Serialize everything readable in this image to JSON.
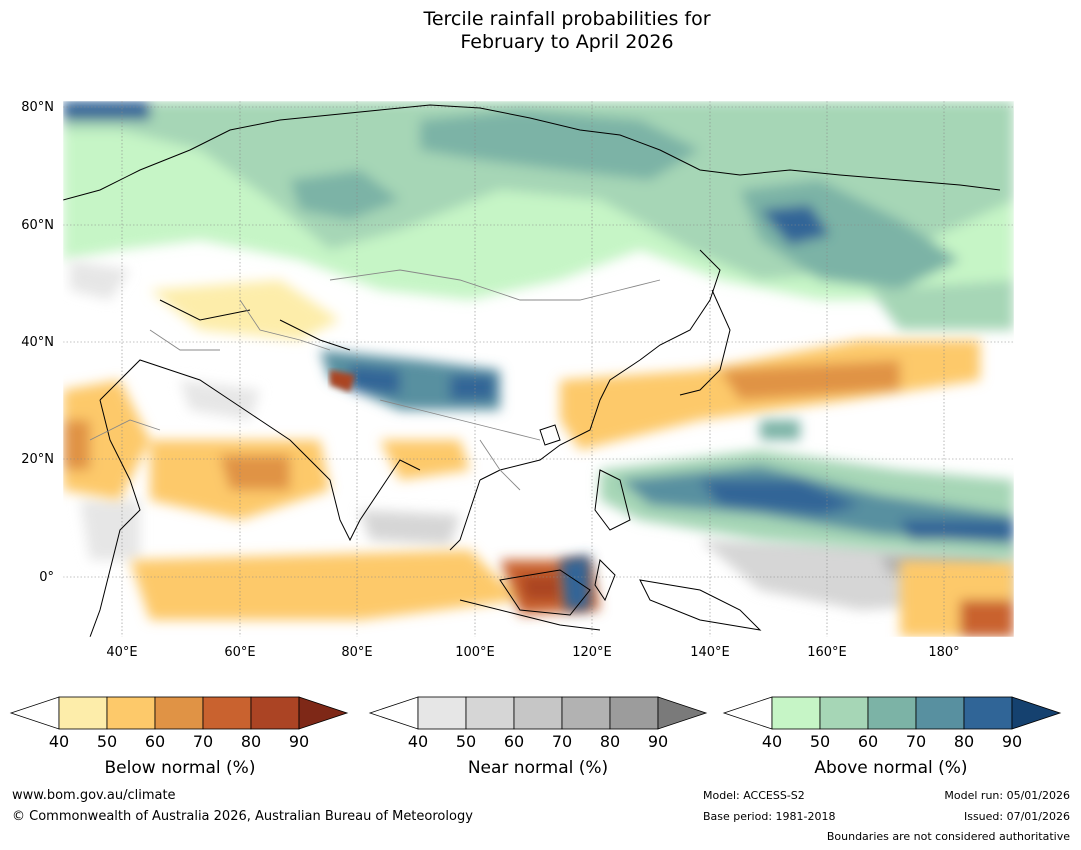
{
  "title": {
    "line1": "Tercile rainfall probabilities for",
    "line2": "February to April 2026"
  },
  "map": {
    "lat_labels": [
      "80°N",
      "60°N",
      "40°N",
      "20°N",
      "0°"
    ],
    "lon_labels": [
      "40°E",
      "60°E",
      "80°E",
      "100°E",
      "120°E",
      "140°E",
      "160°E",
      "180°"
    ],
    "region": {
      "lon_min": 30,
      "lon_max": 192,
      "lat_min": -10,
      "lat_max": 81
    }
  },
  "legends": [
    {
      "name": "below",
      "label": "Below normal (%)",
      "ticks": [
        "40",
        "50",
        "60",
        "70",
        "80",
        "90"
      ],
      "colors": [
        "#fdedaa",
        "#fdc96a",
        "#e09345",
        "#c9622f",
        "#ab4424",
        "#7e2817"
      ]
    },
    {
      "name": "near",
      "label": "Near normal (%)",
      "ticks": [
        "40",
        "50",
        "60",
        "70",
        "80",
        "90"
      ],
      "colors": [
        "#e6e6e6",
        "#d6d6d6",
        "#c6c6c6",
        "#b2b2b2",
        "#9c9c9c",
        "#7a7a7a"
      ]
    },
    {
      "name": "above",
      "label": "Above normal (%)",
      "ticks": [
        "40",
        "50",
        "60",
        "70",
        "80",
        "90"
      ],
      "colors": [
        "#c6f5c6",
        "#a6d6b6",
        "#7cb3a6",
        "#5890a0",
        "#306597",
        "#15416f"
      ]
    }
  ],
  "footer": {
    "website": "www.bom.gov.au/climate",
    "copyright": "© Commonwealth of Australia 2026, Australian Bureau of Meteorology",
    "model": "Model: ACCESS-S2",
    "base_period": "Base period: 1981-2018",
    "model_run": "Model run: 05/01/2026",
    "issued": "Issued: 07/01/2026",
    "disclaimer": "Boundaries are not considered authoritative"
  }
}
